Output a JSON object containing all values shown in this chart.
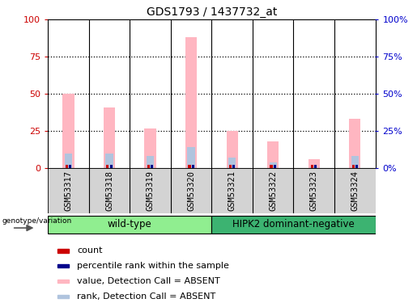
{
  "title": "GDS1793 / 1437732_at",
  "samples": [
    "GSM53317",
    "GSM53318",
    "GSM53319",
    "GSM53320",
    "GSM53321",
    "GSM53322",
    "GSM53323",
    "GSM53324"
  ],
  "pink_values": [
    50,
    41,
    27,
    88,
    25,
    18,
    6,
    33
  ],
  "blue_values": [
    10,
    10,
    8,
    14,
    7,
    4,
    1,
    8
  ],
  "ylim": [
    0,
    100
  ],
  "yticks": [
    0,
    25,
    50,
    75,
    100
  ],
  "pink_color": "#ffb6c1",
  "blue_color": "#b0c4de",
  "red_color": "#cc0000",
  "dark_blue_color": "#00008b",
  "bg_color": "#ffffff",
  "left_axis_color": "#cc0000",
  "right_axis_color": "#0000cc",
  "wt_color": "#90ee90",
  "hipk2_color": "#3cb371",
  "tick_label_bg": "#d3d3d3",
  "legend_items": [
    {
      "color": "#cc0000",
      "label": "count"
    },
    {
      "color": "#00008b",
      "label": "percentile rank within the sample"
    },
    {
      "color": "#ffb6c1",
      "label": "value, Detection Call = ABSENT"
    },
    {
      "color": "#b0c4de",
      "label": "rank, Detection Call = ABSENT"
    }
  ]
}
